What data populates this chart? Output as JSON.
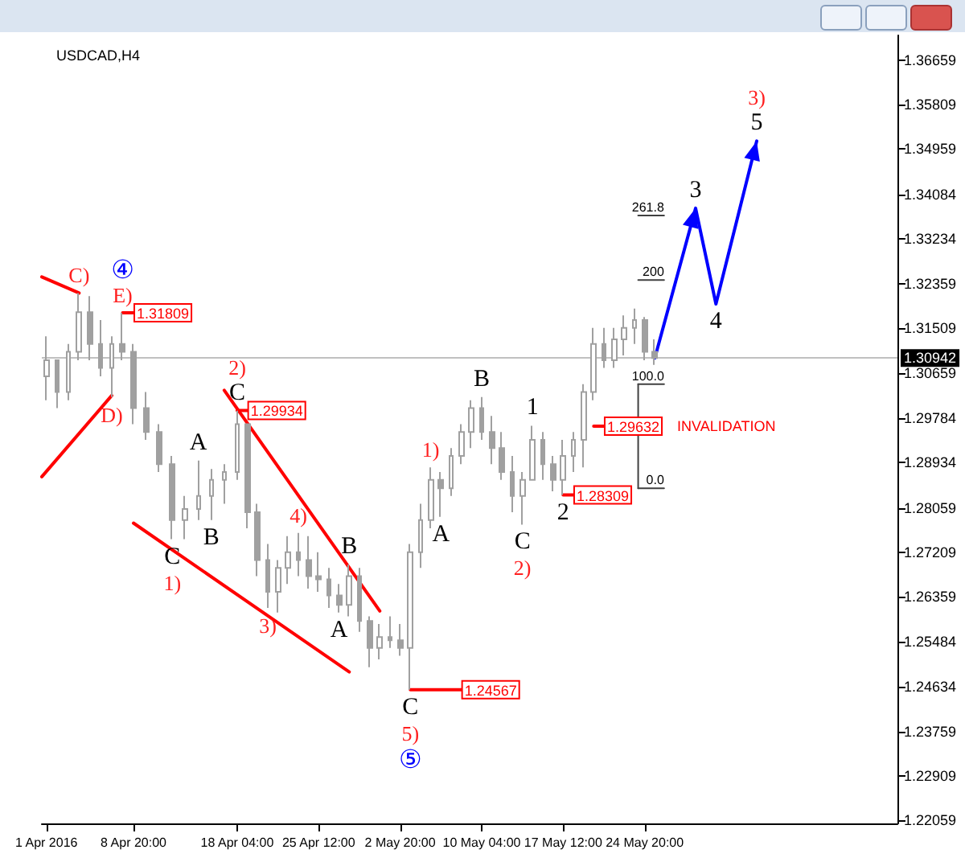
{
  "chart_data": {
    "type": "candlestick",
    "title": "USDCAD,H4",
    "color": "#a0a0a0",
    "x": [
      "2016-04-01T00:00",
      "2016-04-01T23:30",
      "2016-04-02T23:00",
      "2016-04-03T22:30",
      "2016-04-04T22:00",
      "2016-04-05T21:30",
      "2016-04-06T21:00",
      "2016-04-07T20:30",
      "2016-04-08T20:00",
      "2016-04-10T00:00",
      "2016-04-11T04:00",
      "2016-04-12T08:00",
      "2016-04-13T12:00",
      "2016-04-14T16:00",
      "2016-04-15T20:00",
      "2016-04-17T00:00",
      "2016-04-18T04:00",
      "2016-04-19T02:00",
      "2016-04-20T00:00",
      "2016-04-20T22:00",
      "2016-04-21T20:00",
      "2016-04-22T18:00",
      "2016-04-23T16:00",
      "2016-04-24T14:00",
      "2016-04-25T12:00",
      "2016-04-26T10:00",
      "2016-04-27T08:00",
      "2016-04-28T06:00",
      "2016-04-29T04:00",
      "2016-04-30T02:00",
      "2016-05-01T00:00",
      "2016-05-01T22:00",
      "2016-05-02T20:00",
      "2016-05-03T18:00",
      "2016-05-04T16:00",
      "2016-05-05T14:00",
      "2016-05-06T12:00",
      "2016-05-07T10:00",
      "2016-05-08T08:00",
      "2016-05-09T06:00",
      "2016-05-10T04:00",
      "2016-05-11T02:00",
      "2016-05-12T00:00",
      "2016-05-12T22:00",
      "2016-05-13T20:00",
      "2016-05-14T18:00",
      "2016-05-15T16:00",
      "2016-05-16T14:00",
      "2016-05-17T12:00",
      "2016-05-18T10:00",
      "2016-05-19T08:00",
      "2016-05-20T06:00",
      "2016-05-21T04:00",
      "2016-05-22T02:00",
      "2016-05-23T00:00",
      "2016-05-23T22:00",
      "2016-05-24T20:00",
      "2016-05-25T18:00"
    ],
    "ohlc": [
      [
        1.3059,
        1.3136,
        1.3013,
        1.309
      ],
      [
        1.309,
        1.309,
        1.2998,
        1.3029
      ],
      [
        1.3029,
        1.3121,
        1.3013,
        1.3106
      ],
      [
        1.3106,
        1.3219,
        1.309,
        1.3182
      ],
      [
        1.3182,
        1.3213,
        1.309,
        1.3121
      ],
      [
        1.3121,
        1.3167,
        1.3059,
        1.3075
      ],
      [
        1.3075,
        1.3136,
        1.3019,
        1.3121
      ],
      [
        1.3121,
        1.3181,
        1.309,
        1.3106
      ],
      [
        1.3106,
        1.3121,
        1.2967,
        1.2998
      ],
      [
        1.2998,
        1.3029,
        1.2937,
        1.2952
      ],
      [
        1.2952,
        1.2967,
        1.2875,
        1.289
      ],
      [
        1.289,
        1.2906,
        1.2746,
        1.2783
      ],
      [
        1.2783,
        1.2829,
        1.2746,
        1.2804
      ],
      [
        1.2804,
        1.2897,
        1.2783,
        1.2829
      ],
      [
        1.2829,
        1.2881,
        1.2783,
        1.286
      ],
      [
        1.286,
        1.289,
        1.2814,
        1.2875
      ],
      [
        1.2875,
        1.2993,
        1.286,
        1.2967
      ],
      [
        1.2967,
        1.2967,
        1.2767,
        1.2798
      ],
      [
        1.2798,
        1.2814,
        1.2675,
        1.2706
      ],
      [
        1.2706,
        1.2737,
        1.2614,
        1.2645
      ],
      [
        1.2645,
        1.2706,
        1.2605,
        1.2691
      ],
      [
        1.2691,
        1.2752,
        1.266,
        1.2721
      ],
      [
        1.2721,
        1.2758,
        1.2675,
        1.2706
      ],
      [
        1.2706,
        1.2752,
        1.2651,
        1.2675
      ],
      [
        1.2675,
        1.2721,
        1.2645,
        1.2669
      ],
      [
        1.2669,
        1.2691,
        1.2614,
        1.2638
      ],
      [
        1.2638,
        1.266,
        1.2605,
        1.262
      ],
      [
        1.262,
        1.2697,
        1.2598,
        1.2675
      ],
      [
        1.2675,
        1.2691,
        1.2568,
        1.2589
      ],
      [
        1.2589,
        1.2598,
        1.25,
        1.2537
      ],
      [
        1.2537,
        1.2583,
        1.2515,
        1.2558
      ],
      [
        1.2558,
        1.2598,
        1.2537,
        1.2552
      ],
      [
        1.2552,
        1.2583,
        1.2522,
        1.2537
      ],
      [
        1.2537,
        1.2737,
        1.2457,
        1.2721
      ],
      [
        1.2721,
        1.2814,
        1.2691,
        1.2783
      ],
      [
        1.2783,
        1.2884,
        1.2767,
        1.286
      ],
      [
        1.286,
        1.2875,
        1.2789,
        1.2844
      ],
      [
        1.2844,
        1.2921,
        1.2829,
        1.2906
      ],
      [
        1.2906,
        1.2967,
        1.289,
        1.2952
      ],
      [
        1.2952,
        1.3013,
        1.2921,
        1.2998
      ],
      [
        1.2998,
        1.3019,
        1.2937,
        1.2952
      ],
      [
        1.2952,
        1.2983,
        1.289,
        1.2921
      ],
      [
        1.2921,
        1.2952,
        1.286,
        1.2875
      ],
      [
        1.2875,
        1.2906,
        1.2798,
        1.2829
      ],
      [
        1.2829,
        1.2875,
        1.2774,
        1.286
      ],
      [
        1.286,
        1.2964,
        1.286,
        1.2937
      ],
      [
        1.2937,
        1.2952,
        1.286,
        1.289
      ],
      [
        1.289,
        1.2906,
        1.2838,
        1.286
      ],
      [
        1.286,
        1.2937,
        1.2831,
        1.2906
      ],
      [
        1.2906,
        1.2952,
        1.2875,
        1.2937
      ],
      [
        1.2937,
        1.3044,
        1.2884,
        1.3029
      ],
      [
        1.3029,
        1.3152,
        1.3013,
        1.3121
      ],
      [
        1.3121,
        1.3152,
        1.3075,
        1.309
      ],
      [
        1.309,
        1.3152,
        1.3075,
        1.313
      ],
      [
        1.313,
        1.3176,
        1.3099,
        1.3152
      ],
      [
        1.3152,
        1.3189,
        1.3121,
        1.3167
      ],
      [
        1.3167,
        1.3173,
        1.309,
        1.3106
      ],
      [
        1.3106,
        1.313,
        1.3081,
        1.3094
      ]
    ],
    "series": [
      {
        "type": "line",
        "color": "#ff0000",
        "x": [
          "2016-03-31T14:00",
          "2016-04-03T22:30"
        ],
        "values": [
          1.325,
          1.3219
        ]
      },
      {
        "type": "line",
        "color": "#ff0000",
        "x": [
          "2016-03-31T14:00",
          "2016-04-06T21:00"
        ],
        "values": [
          1.2866,
          1.3022
        ]
      },
      {
        "type": "line",
        "color": "#ff0000",
        "x": [
          "2016-04-17T00:00",
          "2016-05-01T00:00"
        ],
        "values": [
          1.3032,
          1.2608
        ]
      },
      {
        "type": "line",
        "color": "#ff0000",
        "x": [
          "2016-04-08T20:00",
          "2016-04-28T06:00"
        ],
        "values": [
          1.2777,
          1.2491
        ]
      },
      {
        "type": "line",
        "color": "#ff0000",
        "x": [
          "2016-04-07T20:30",
          "2016-04-08T20:00"
        ],
        "values": [
          1.31809,
          1.31809
        ],
        "value_labels": [
          null,
          "1.31809"
        ]
      },
      {
        "type": "line",
        "color": "#ff0000",
        "x": [
          "2016-04-18T04:00",
          "2016-04-19T02:00"
        ],
        "values": [
          1.29934,
          1.29934
        ],
        "value_labels": [
          null,
          "1.29934"
        ]
      },
      {
        "type": "line",
        "color": "#ff0000",
        "x": [
          "2016-05-03T18:00",
          "2016-05-08T08:00"
        ],
        "values": [
          1.24567,
          1.24567
        ],
        "value_labels": [
          null,
          "1.24567"
        ]
      },
      {
        "type": "line",
        "color": "#ff0000",
        "name": "INVALIDATION",
        "x": [
          "2016-05-20T06:00",
          "2016-05-21T04:00"
        ],
        "values": [
          1.29632,
          1.29632
        ],
        "value_labels": [
          null,
          "1.29632"
        ]
      },
      {
        "type": "line",
        "color": "#ff0000",
        "x": [
          "2016-05-17T12:00",
          "2016-05-18T10:00"
        ],
        "values": [
          1.28309,
          1.28309
        ],
        "value_labels": [
          null,
          "1.28309"
        ]
      },
      {
        "type": "line",
        "color": "#404040",
        "x": [
          "2016-05-24T06:00",
          "2016-05-24T06:00"
        ],
        "values": [
          1.3044,
          1.2844
        ]
      },
      {
        "type": "line",
        "color": "#404040",
        "x": [
          "2016-05-24T06:00",
          "2016-05-26T14:00"
        ],
        "values": [
          1.3368,
          1.3368
        ]
      },
      {
        "type": "line",
        "color": "#404040",
        "x": [
          "2016-05-24T06:00",
          "2016-05-26T14:00"
        ],
        "values": [
          1.3244,
          1.3244
        ]
      },
      {
        "type": "line",
        "color": "#404040",
        "x": [
          "2016-05-24T06:00",
          "2016-05-26T14:00"
        ],
        "values": [
          1.3044,
          1.3044
        ]
      },
      {
        "type": "line",
        "color": "#404040",
        "x": [
          "2016-05-24T06:00",
          "2016-05-26T14:00"
        ],
        "values": [
          1.2844,
          1.2844
        ]
      },
      {
        "type": "line",
        "color": "#0000ff",
        "x": [
          "2016-05-25T18:00",
          "2016-05-29T10:00",
          "2016-05-31T06:00",
          "2016-06-03T22:00"
        ],
        "values": [
          1.3094,
          1.3382,
          1.3198,
          1.3511
        ]
      }
    ],
    "ref_lines": [
      {
        "axis": "y",
        "value": 1.30942,
        "label": "1.30942",
        "color": "#c0c0c0"
      }
    ],
    "annotations": [
      {
        "text": "C)",
        "x": "2016-04-03T22:30",
        "y": 1.3219
      },
      {
        "text": "E)",
        "x": "2016-04-07T20:30",
        "y": 1.3181
      },
      {
        "text": "④",
        "x": "2016-04-07T20:30",
        "y": 1.3181
      },
      {
        "text": "D)",
        "x": "2016-04-06T21:00",
        "y": 1.3019
      },
      {
        "text": "C",
        "x": "2016-04-12T08:00",
        "y": 1.2746
      },
      {
        "text": "1)",
        "x": "2016-04-12T08:00",
        "y": 1.2746
      },
      {
        "text": "A",
        "x": "2016-04-14T16:00",
        "y": 1.2897
      },
      {
        "text": "B",
        "x": "2016-04-15T20:00",
        "y": 1.2783
      },
      {
        "text": "C",
        "x": "2016-04-18T04:00",
        "y": 1.2993
      },
      {
        "text": "2)",
        "x": "2016-04-18T04:00",
        "y": 1.2993
      },
      {
        "text": "3)",
        "x": "2016-04-20T22:00",
        "y": 1.2614
      },
      {
        "text": "4)",
        "x": "2016-04-23T16:00",
        "y": 1.2758
      },
      {
        "text": "A",
        "x": "2016-04-27T08:00",
        "y": 1.2605
      },
      {
        "text": "B",
        "x": "2016-04-28T06:00",
        "y": 1.2697
      },
      {
        "text": "C",
        "x": "2016-05-03T18:00",
        "y": 1.2457
      },
      {
        "text": "5)",
        "x": "2016-05-03T18:00",
        "y": 1.2457
      },
      {
        "text": "⑤",
        "x": "2016-05-03T18:00",
        "y": 1.2457
      },
      {
        "text": "1)",
        "x": "2016-05-05T14:00",
        "y": 1.2884
      },
      {
        "text": "A",
        "x": "2016-05-06T12:00",
        "y": 1.2789
      },
      {
        "text": "B",
        "x": "2016-05-10T04:00",
        "y": 1.3019
      },
      {
        "text": "C",
        "x": "2016-05-13T20:00",
        "y": 1.2774
      },
      {
        "text": "2)",
        "x": "2016-05-13T20:00",
        "y": 1.2774
      },
      {
        "text": "1",
        "x": "2016-05-14T18:00",
        "y": 1.2964
      },
      {
        "text": "2",
        "x": "2016-05-17T12:00",
        "y": 1.2831
      },
      {
        "text": "3",
        "x": "2016-05-29T10:00",
        "y": 1.3382
      },
      {
        "text": "4",
        "x": "2016-05-31T06:00",
        "y": 1.3198
      },
      {
        "text": "5",
        "x": "2016-06-03T22:00",
        "y": 1.3511
      },
      {
        "text": "3)",
        "x": "2016-06-03T22:00",
        "y": 1.3511
      },
      {
        "text": "261.8",
        "x": "2016-05-26T14:00",
        "y": 1.3368
      },
      {
        "text": "200",
        "x": "2016-05-26T14:00",
        "y": 1.3244
      },
      {
        "text": "100.0",
        "x": "2016-05-26T14:00",
        "y": 1.3044
      },
      {
        "text": "0.0",
        "x": "2016-05-26T14:00",
        "y": 1.2844
      }
    ],
    "marker": "none",
    "xlim": [
      "2016-03-31T14:00",
      "2016-06-16T14:00"
    ],
    "xticks": [
      {
        "value": "2016-04-01T00:00",
        "label": "1 Apr 2016"
      },
      {
        "value": "2016-04-08T20:00",
        "label": "8 Apr 20:00"
      },
      {
        "value": "2016-04-18T04:00",
        "label": "18 Apr 04:00"
      },
      {
        "value": "2016-04-25T12:00",
        "label": "25 Apr 12:00"
      },
      {
        "value": "2016-05-02T20:00",
        "label": "2 May 20:00"
      },
      {
        "value": "2016-05-10T04:00",
        "label": "10 May 04:00"
      },
      {
        "value": "2016-05-17T12:00",
        "label": "17 May 12:00"
      },
      {
        "value": "2016-05-24T20:00",
        "label": "24 May 20:00"
      }
    ],
    "ylim": [
      1.22,
      1.3714
    ],
    "yticks": [
      1.36659,
      1.35809,
      1.34959,
      1.34084,
      1.33234,
      1.32359,
      1.31509,
      1.30659,
      1.29784,
      1.28934,
      1.28059,
      1.27209,
      1.26359,
      1.25484,
      1.24634,
      1.23759,
      1.22909,
      1.22059
    ]
  }
}
